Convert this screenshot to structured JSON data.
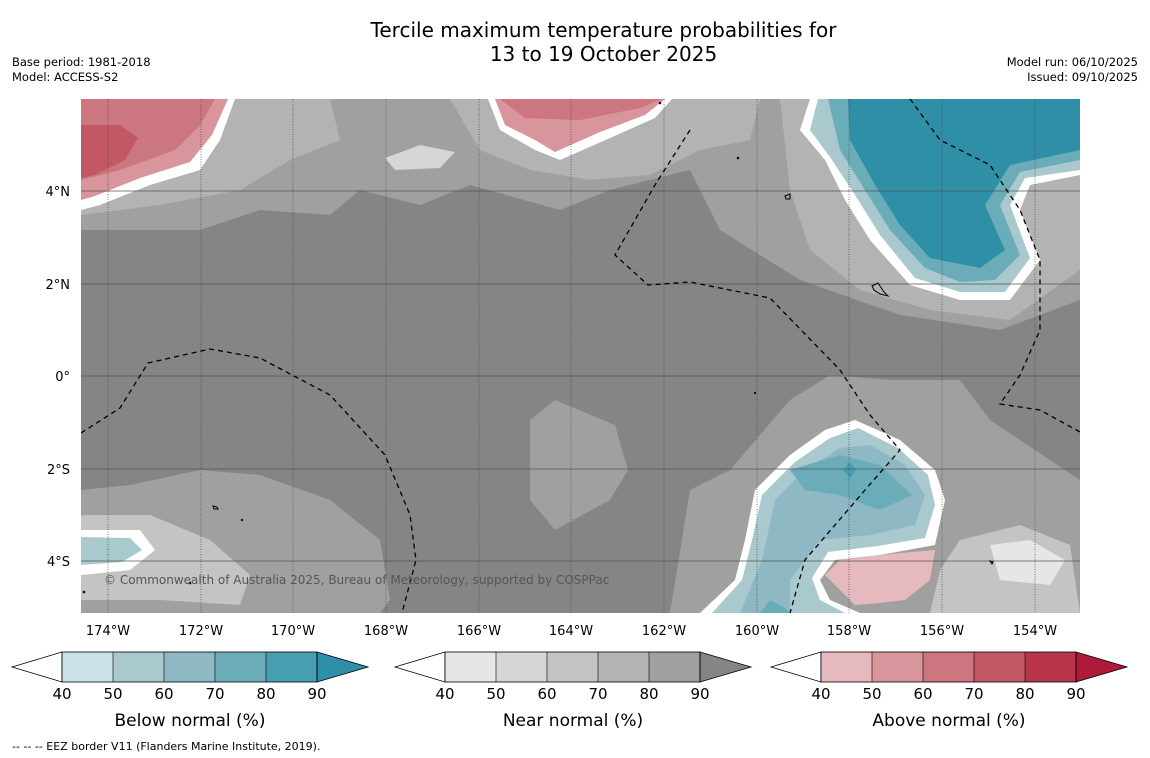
{
  "title": {
    "line1": "Tercile maximum temperature probabilities for",
    "line2": "13 to 19 October 2025"
  },
  "meta_left": {
    "base_period": "Base period: 1981-2018",
    "model": "Model: ACCESS-S2"
  },
  "meta_right": {
    "model_run": "Model run: 06/10/2025",
    "issued": "Issued: 09/10/2025"
  },
  "map": {
    "lat_labels": [
      "4°N",
      "2°N",
      "0°",
      "2°S",
      "4°S"
    ],
    "lon_labels": [
      "174°W",
      "172°W",
      "170°W",
      "168°W",
      "166°W",
      "164°W",
      "162°W",
      "160°W",
      "158°W",
      "156°W",
      "154°W"
    ],
    "copyright": "© Commonwealth of Australia 2025, Bureau of Meteorology, supported by COSPPac",
    "colors": {
      "near_normal_base": "#858585",
      "sea_grid": "#555555"
    }
  },
  "colorbars": [
    {
      "title": "Below normal (%)",
      "ticks": [
        "40",
        "50",
        "60",
        "70",
        "80",
        "90"
      ],
      "colors": [
        "#c8e2e8",
        "#a9c9ce",
        "#8db8c4",
        "#6aadb9",
        "#459fb1",
        "#2f8fa6"
      ]
    },
    {
      "title": "Near normal (%)",
      "ticks": [
        "40",
        "50",
        "60",
        "70",
        "80",
        "90"
      ],
      "colors": [
        "#e6e6e6",
        "#d6d6d6",
        "#c4c4c4",
        "#b3b3b3",
        "#a0a0a0",
        "#858585"
      ]
    },
    {
      "title": "Above normal (%)",
      "ticks": [
        "40",
        "50",
        "60",
        "70",
        "80",
        "90"
      ],
      "colors": [
        "#e5b9be",
        "#d8959c",
        "#cc7680",
        "#c25864",
        "#b8354a",
        "#b01a3a"
      ]
    }
  ],
  "footnote": "--  --  -- EEZ border V11 (Flanders Marine Institute, 2019)."
}
